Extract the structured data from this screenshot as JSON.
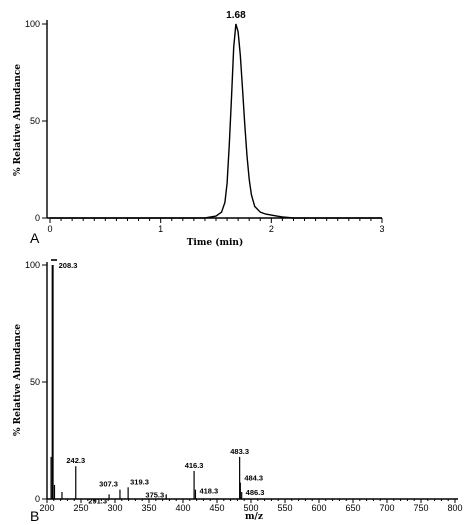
{
  "chart_data": [
    {
      "type": "line",
      "panel_label": "A",
      "xlabel": "Time (min)",
      "ylabel": "% Relative Abundance",
      "xlim": [
        0,
        3
      ],
      "ylim": [
        0,
        100
      ],
      "x_ticks": [
        "0",
        "1",
        "2",
        "3"
      ],
      "y_ticks": [
        "0",
        "50",
        "100"
      ],
      "peak_label": "1.68",
      "series": [
        {
          "x": [
            0.0,
            1.2,
            1.4,
            1.5,
            1.55,
            1.58,
            1.6,
            1.62,
            1.64,
            1.66,
            1.68,
            1.7,
            1.72,
            1.74,
            1.76,
            1.78,
            1.8,
            1.82,
            1.85,
            1.9,
            1.95,
            2.0,
            2.05,
            2.1,
            2.2,
            2.5,
            3.0
          ],
          "y": [
            0,
            0,
            0,
            1,
            3,
            8,
            18,
            38,
            62,
            88,
            100,
            96,
            84,
            66,
            48,
            32,
            20,
            12,
            6,
            3,
            2,
            1.5,
            1,
            0.5,
            0,
            0,
            0
          ]
        }
      ]
    },
    {
      "type": "bar",
      "panel_label": "B",
      "xlabel": "m/z",
      "ylabel": "% Relative Abundance",
      "xlim": [
        200,
        800
      ],
      "ylim": [
        0,
        100
      ],
      "x_ticks": [
        "200",
        "250",
        "300",
        "350",
        "400",
        "450",
        "500",
        "550",
        "600",
        "650",
        "700",
        "750",
        "800"
      ],
      "y_ticks": [
        "0",
        "50",
        "100"
      ],
      "peaks": [
        {
          "mz": 208.3,
          "intensity": 100,
          "label": "208.3"
        },
        {
          "mz": 206.0,
          "intensity": 18,
          "label": ""
        },
        {
          "mz": 211.0,
          "intensity": 6,
          "label": ""
        },
        {
          "mz": 222.0,
          "intensity": 3,
          "label": ""
        },
        {
          "mz": 242.3,
          "intensity": 14,
          "label": "242.3"
        },
        {
          "mz": 291.3,
          "intensity": 2,
          "label": "291.3"
        },
        {
          "mz": 307.3,
          "intensity": 4,
          "label": "307.3"
        },
        {
          "mz": 319.3,
          "intensity": 5,
          "label": "319.3"
        },
        {
          "mz": 375.3,
          "intensity": 2,
          "label": "375.3"
        },
        {
          "mz": 416.3,
          "intensity": 12,
          "label": "416.3"
        },
        {
          "mz": 418.3,
          "intensity": 4,
          "label": "418.3"
        },
        {
          "mz": 483.3,
          "intensity": 18,
          "label": "483.3"
        },
        {
          "mz": 484.3,
          "intensity": 7,
          "label": "484.3"
        },
        {
          "mz": 486.3,
          "intensity": 3,
          "label": "486.3"
        }
      ]
    }
  ]
}
